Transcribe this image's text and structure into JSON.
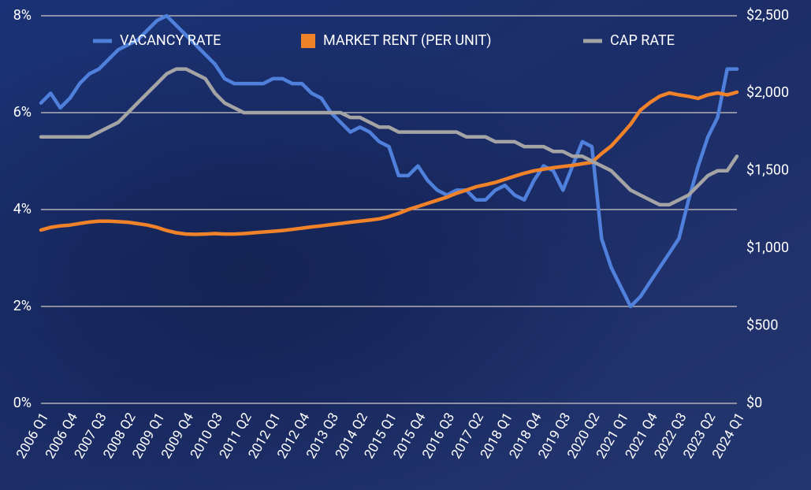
{
  "chart_data": {
    "type": "line",
    "categories": [
      "2006 Q1",
      null,
      null,
      "2006 Q4",
      null,
      null,
      "2007 Q3",
      null,
      null,
      "2008 Q2",
      null,
      null,
      "2009 Q1",
      null,
      null,
      "2009 Q4",
      null,
      null,
      "2010 Q3",
      null,
      null,
      "2011 Q2",
      null,
      null,
      "2012 Q1",
      null,
      null,
      "2012 Q4",
      null,
      null,
      "2013 Q3",
      null,
      null,
      "2014 Q2",
      null,
      null,
      "2015 Q1",
      null,
      null,
      "2015 Q4",
      null,
      null,
      "2016 Q3",
      null,
      null,
      "2017 Q2",
      null,
      null,
      "2018 Q1",
      null,
      null,
      "2018 Q4",
      null,
      null,
      "2019 Q3",
      null,
      null,
      "2020 Q2",
      null,
      null,
      "2021 Q1",
      null,
      null,
      "2021 Q4",
      null,
      null,
      "2022 Q3",
      null,
      null,
      "2023 Q2",
      null,
      null,
      "2024 Q1"
    ],
    "series": [
      {
        "name": "VACANCY RATE",
        "color": "#4f80dc",
        "values": [
          6.2,
          6.4,
          6.1,
          6.3,
          6.6,
          6.8,
          6.9,
          7.1,
          7.3,
          7.4,
          7.5,
          7.7,
          7.9,
          8.0,
          7.8,
          7.6,
          7.4,
          7.2,
          7.0,
          6.7,
          6.6,
          6.6,
          6.6,
          6.6,
          6.7,
          6.7,
          6.6,
          6.6,
          6.4,
          6.3,
          6.0,
          5.8,
          5.6,
          5.7,
          5.6,
          5.4,
          5.3,
          4.7,
          4.7,
          4.9,
          4.6,
          4.4,
          4.3,
          4.4,
          4.4,
          4.2,
          4.2,
          4.4,
          4.5,
          4.3,
          4.2,
          4.6,
          4.9,
          4.8,
          4.4,
          4.9,
          5.4,
          5.3,
          3.4,
          2.8,
          2.4,
          2.0,
          2.2,
          2.5,
          2.8,
          3.1,
          3.4,
          4.2,
          4.9,
          5.5,
          5.9,
          6.9,
          6.9
        ]
      },
      {
        "name": "MARKET RENT (PER UNIT)",
        "color": "#f0822a",
        "axis": "y2",
        "values": [
          1118,
          1135,
          1145,
          1150,
          1160,
          1169,
          1175,
          1175,
          1172,
          1168,
          1159,
          1150,
          1135,
          1115,
          1100,
          1092,
          1090,
          1092,
          1095,
          1092,
          1092,
          1095,
          1100,
          1105,
          1110,
          1115,
          1122,
          1130,
          1138,
          1145,
          1153,
          1160,
          1168,
          1175,
          1182,
          1190,
          1205,
          1225,
          1250,
          1270,
          1290,
          1310,
          1330,
          1355,
          1375,
          1397,
          1410,
          1425,
          1445,
          1465,
          1484,
          1500,
          1510,
          1520,
          1528,
          1535,
          1545,
          1555,
          1611,
          1660,
          1728,
          1800,
          1890,
          1940,
          1980,
          2002,
          1990,
          1980,
          1967,
          1990,
          2002,
          1990,
          2007
        ]
      },
      {
        "name": "CAP RATE",
        "color": "#a4a4a4",
        "values": [
          5.5,
          5.5,
          5.5,
          5.5,
          5.5,
          5.5,
          5.6,
          5.7,
          5.8,
          6.0,
          6.2,
          6.4,
          6.6,
          6.8,
          6.9,
          6.9,
          6.8,
          6.7,
          6.4,
          6.2,
          6.1,
          6.0,
          6.0,
          6.0,
          6.0,
          6.0,
          6.0,
          6.0,
          6.0,
          6.0,
          6.0,
          6.0,
          5.9,
          5.9,
          5.8,
          5.7,
          5.7,
          5.6,
          5.6,
          5.6,
          5.6,
          5.6,
          5.6,
          5.6,
          5.5,
          5.5,
          5.5,
          5.4,
          5.4,
          5.4,
          5.3,
          5.3,
          5.3,
          5.2,
          5.2,
          5.1,
          5.1,
          5.0,
          4.9,
          4.8,
          4.6,
          4.4,
          4.3,
          4.2,
          4.1,
          4.1,
          4.2,
          4.3,
          4.5,
          4.7,
          4.8,
          4.8,
          5.1
        ]
      }
    ],
    "ylim": [
      0,
      8
    ],
    "yticks": [
      {
        "value": 0,
        "label": "0%"
      },
      {
        "value": 2,
        "label": "2%"
      },
      {
        "value": 4,
        "label": "4%"
      },
      {
        "value": 6,
        "label": "6%"
      },
      {
        "value": 8,
        "label": "8%"
      }
    ],
    "y2lim": [
      0,
      2500
    ],
    "y2ticks": [
      {
        "value": 0,
        "label": "$0"
      },
      {
        "value": 500,
        "label": "$500"
      },
      {
        "value": 1000,
        "label": "$1,000"
      },
      {
        "value": 1500,
        "label": "$1,500"
      },
      {
        "value": 2000,
        "label": "$2,000"
      },
      {
        "value": 2500,
        "label": "$2,500"
      }
    ],
    "grid": true,
    "legend": "top"
  }
}
